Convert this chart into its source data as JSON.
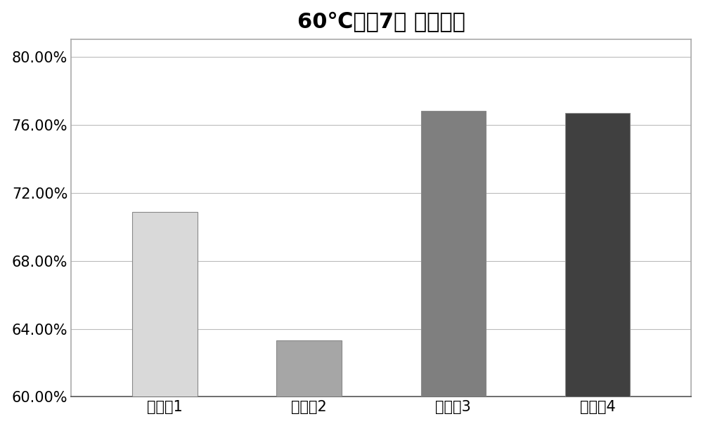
{
  "categories": [
    "电解涵1",
    "电解涵2",
    "电解涵3",
    "电解涵4"
  ],
  "values": [
    0.7085,
    0.633,
    0.768,
    0.767
  ],
  "bar_colors": [
    "#d9d9d9",
    "#a6a6a6",
    "#7f7f7f",
    "#404040"
  ],
  "title": "60℃存储7天 残余容量",
  "ylim_min": 0.6,
  "ylim_max": 0.81,
  "yticks": [
    0.6,
    0.64,
    0.68,
    0.72,
    0.76,
    0.8
  ],
  "ytick_labels": [
    "60.00%",
    "64.00%",
    "68.00%",
    "72.00%",
    "76.00%",
    "80.00%"
  ],
  "title_fontsize": 22,
  "tick_fontsize": 15,
  "background_color": "#ffffff",
  "bar_edge_color": "#888888",
  "grid_color": "#bbbbbb",
  "border_color": "#555555"
}
